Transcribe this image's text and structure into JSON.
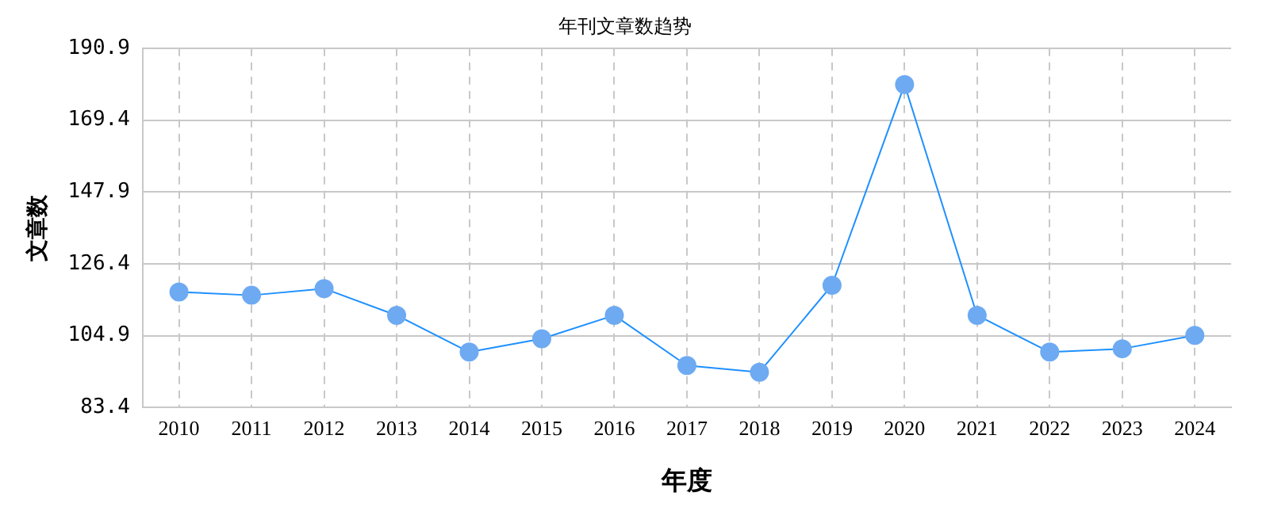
{
  "chart_data": {
    "type": "line",
    "title": "年刊文章数趋势",
    "xlabel": "年度",
    "ylabel": "文章数",
    "categories": [
      "2010",
      "2011",
      "2012",
      "2013",
      "2014",
      "2015",
      "2016",
      "2017",
      "2018",
      "2019",
      "2020",
      "2021",
      "2022",
      "2023",
      "2024"
    ],
    "series": [
      {
        "color": "#1e90ff",
        "values": [
          118,
          117,
          119,
          111,
          100,
          104,
          111,
          96,
          94,
          120,
          180,
          111,
          100,
          101,
          105
        ]
      }
    ],
    "ylim": [
      83.4,
      190.9
    ],
    "yticks": [
      83.4,
      104.9,
      126.4,
      147.9,
      169.4,
      190.9
    ],
    "grid": true,
    "marker": "circle",
    "line_style": "solid",
    "legend": false
  }
}
